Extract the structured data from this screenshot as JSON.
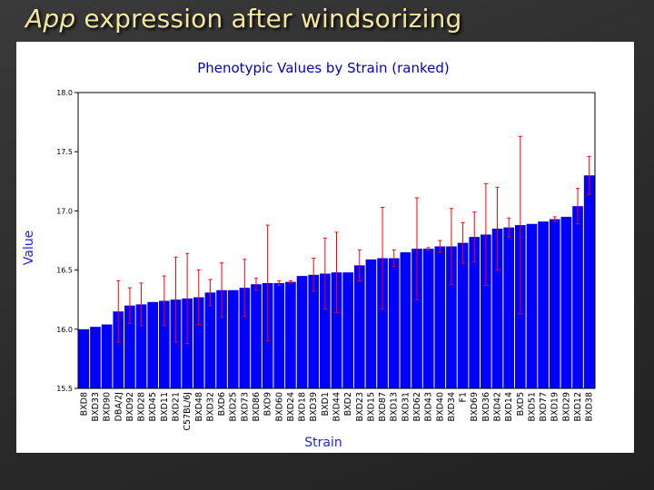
{
  "slide": {
    "title_em": "App",
    "title_rest": " expression after windsorizing"
  },
  "chart_data": {
    "type": "bar",
    "title": "Phenotypic Values by Strain (ranked)",
    "xlabel": "Strain",
    "ylabel": "Value",
    "ylim": [
      15.5,
      18.0
    ],
    "yticks": [
      "15.5",
      "16.0",
      "16.5",
      "17.0",
      "17.5",
      "18.0"
    ],
    "bar_color": "#0000ff",
    "error_color": "#ff0000",
    "categories": [
      "BXD8",
      "BXD33",
      "BXD90",
      "DBA/2J",
      "BXD92",
      "BXD28",
      "BXD45",
      "BXD11",
      "BXD21",
      "C57BL/6J",
      "BXD48",
      "BXD32",
      "BXD6",
      "BXD25",
      "BXD73",
      "BXD86",
      "BXD9",
      "BXD60",
      "BXD24",
      "BXD18",
      "BXD39",
      "BXD1",
      "BXD44",
      "BXD2",
      "BXD23",
      "BXD15",
      "BXD87",
      "BXD13",
      "BXD31",
      "BXD62",
      "BXD43",
      "BXD40",
      "BXD34",
      "F1",
      "BXD69",
      "BXD36",
      "BXD42",
      "BXD14",
      "BXD5",
      "BXD51",
      "BXD77",
      "BXD19",
      "BXD29",
      "BXD12",
      "BXD38"
    ],
    "values": [
      16.0,
      16.02,
      16.04,
      16.15,
      16.2,
      16.21,
      16.23,
      16.24,
      16.25,
      16.26,
      16.27,
      16.31,
      16.33,
      16.33,
      16.35,
      16.38,
      16.39,
      16.39,
      16.4,
      16.45,
      16.46,
      16.47,
      16.48,
      16.48,
      16.54,
      16.59,
      16.6,
      16.6,
      16.65,
      16.68,
      16.68,
      16.7,
      16.7,
      16.73,
      16.78,
      16.8,
      16.85,
      16.86,
      16.88,
      16.89,
      16.91,
      16.93,
      16.95,
      17.04,
      17.3
    ],
    "errors": [
      0,
      0,
      0,
      0.26,
      0.15,
      0.18,
      0,
      0.21,
      0.36,
      0.38,
      0.23,
      0.11,
      0.23,
      0,
      0.24,
      0.05,
      0.49,
      0.02,
      0.01,
      0,
      0.14,
      0.3,
      0.34,
      0,
      0.13,
      0,
      0.43,
      0.07,
      0,
      0.43,
      0.01,
      0.05,
      0.32,
      0.17,
      0.21,
      0.43,
      0.35,
      0.08,
      0.75,
      0,
      0,
      0.02,
      0,
      0.15,
      0.16
    ]
  }
}
